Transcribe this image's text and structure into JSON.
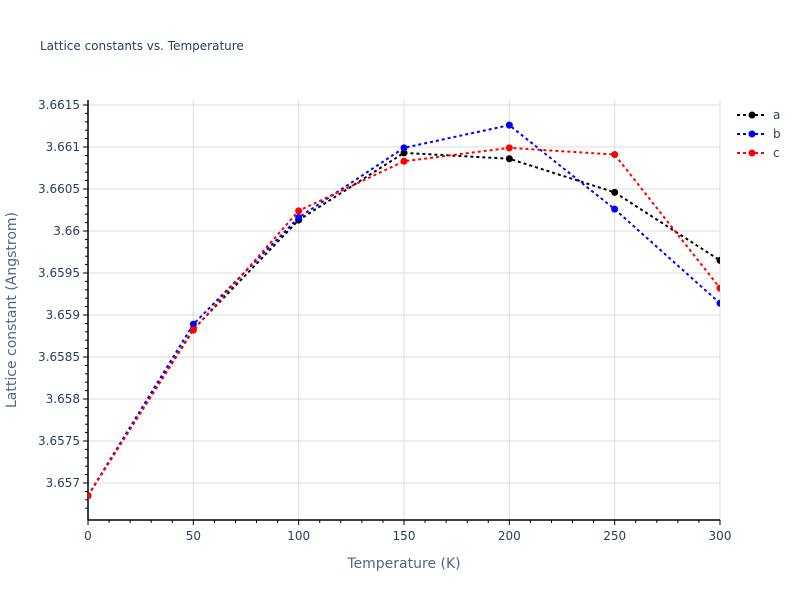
{
  "chart_data": {
    "type": "line",
    "title": "Lattice constants vs. Temperature",
    "xlabel": "Temperature (K)",
    "ylabel": "Lattice constant (Angstrom)",
    "x": [
      0,
      50,
      100,
      150,
      200,
      250,
      300
    ],
    "xlim": [
      0,
      300
    ],
    "ylim": [
      3.65664,
      3.66155
    ],
    "xticks": [
      0,
      50,
      100,
      150,
      200,
      250,
      300
    ],
    "xtick_labels": [
      "0",
      "50",
      "100",
      "150",
      "200",
      "250",
      "300"
    ],
    "yticks": [
      3.657,
      3.6575,
      3.658,
      3.6585,
      3.659,
      3.6595,
      3.66,
      3.6605,
      3.661,
      3.6615
    ],
    "ytick_labels": [
      "3.657",
      "3.6575",
      "3.658",
      "3.6585",
      "3.659",
      "3.6595",
      "3.66",
      "3.6605",
      "3.661",
      "3.6615"
    ],
    "grid": true,
    "legend_position": "top-right outside",
    "series": [
      {
        "name": "a",
        "color": "#000000",
        "values": [
          3.65685,
          3.65883,
          3.66013,
          3.66093,
          3.66086,
          3.66046,
          3.65965
        ]
      },
      {
        "name": "b",
        "color": "#0000ff",
        "values": [
          3.65685,
          3.65889,
          3.66016,
          3.66099,
          3.66126,
          3.66026,
          3.65914
        ]
      },
      {
        "name": "c",
        "color": "#ff0000",
        "values": [
          3.65685,
          3.65882,
          3.66024,
          3.66083,
          3.66099,
          3.66091,
          3.65932
        ]
      }
    ]
  }
}
